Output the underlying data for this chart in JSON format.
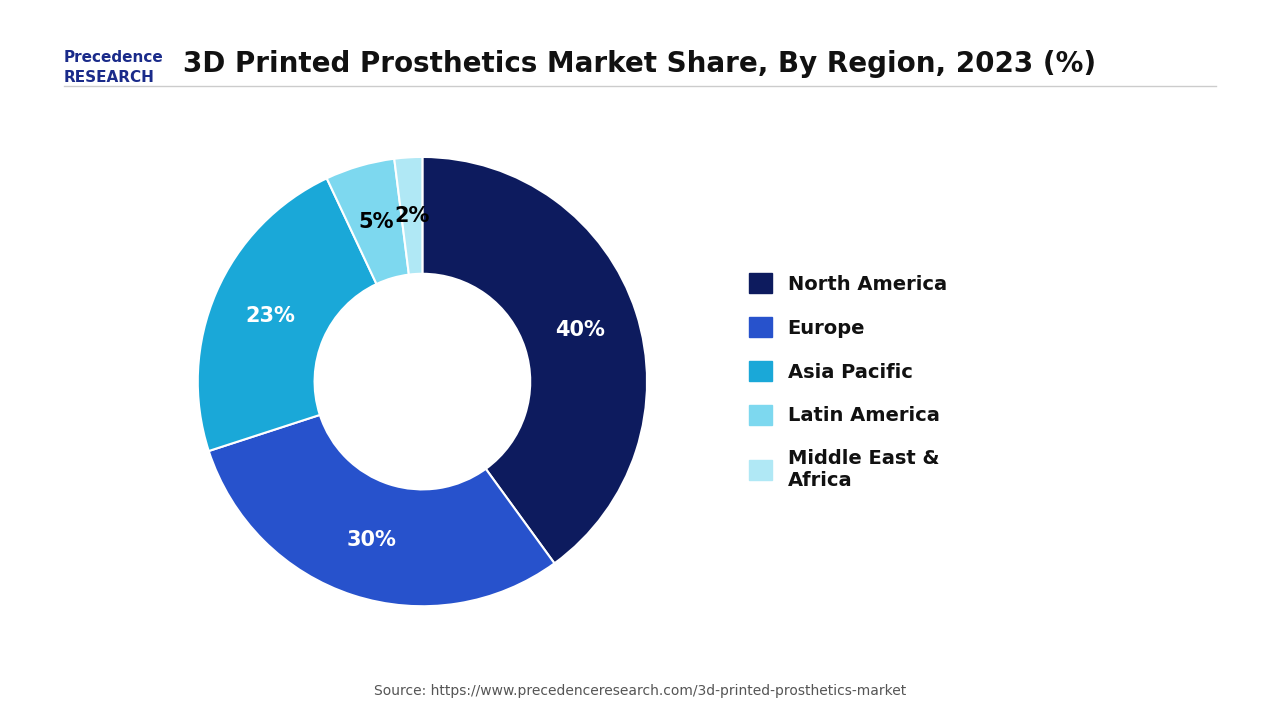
{
  "title": "3D Printed Prosthetics Market Share, By Region, 2023 (%)",
  "segments": [
    {
      "label": "North America",
      "value": 40,
      "color": "#0d1b5e"
    },
    {
      "label": "Europe",
      "value": 30,
      "color": "#2752cc"
    },
    {
      "label": "Asia Pacific",
      "value": 23,
      "color": "#1aa8d8"
    },
    {
      "label": "Latin America",
      "value": 5,
      "color": "#7dd8ef"
    },
    {
      "label": "Middle East &\nAfrica",
      "value": 2,
      "color": "#b0e8f5"
    }
  ],
  "label_colors": {
    "North America": "white",
    "Europe": "white",
    "Asia Pacific": "white",
    "Latin America": "black",
    "Middle East &\nAfrica": "black"
  },
  "source_text": "Source: https://www.precedenceresearch.com/3d-printed-prosthetics-market",
  "background_color": "#ffffff",
  "title_fontsize": 20,
  "legend_fontsize": 14,
  "label_fontsize": 15,
  "wedge_linewidth": 1.5,
  "wedge_edgecolor": "#ffffff"
}
